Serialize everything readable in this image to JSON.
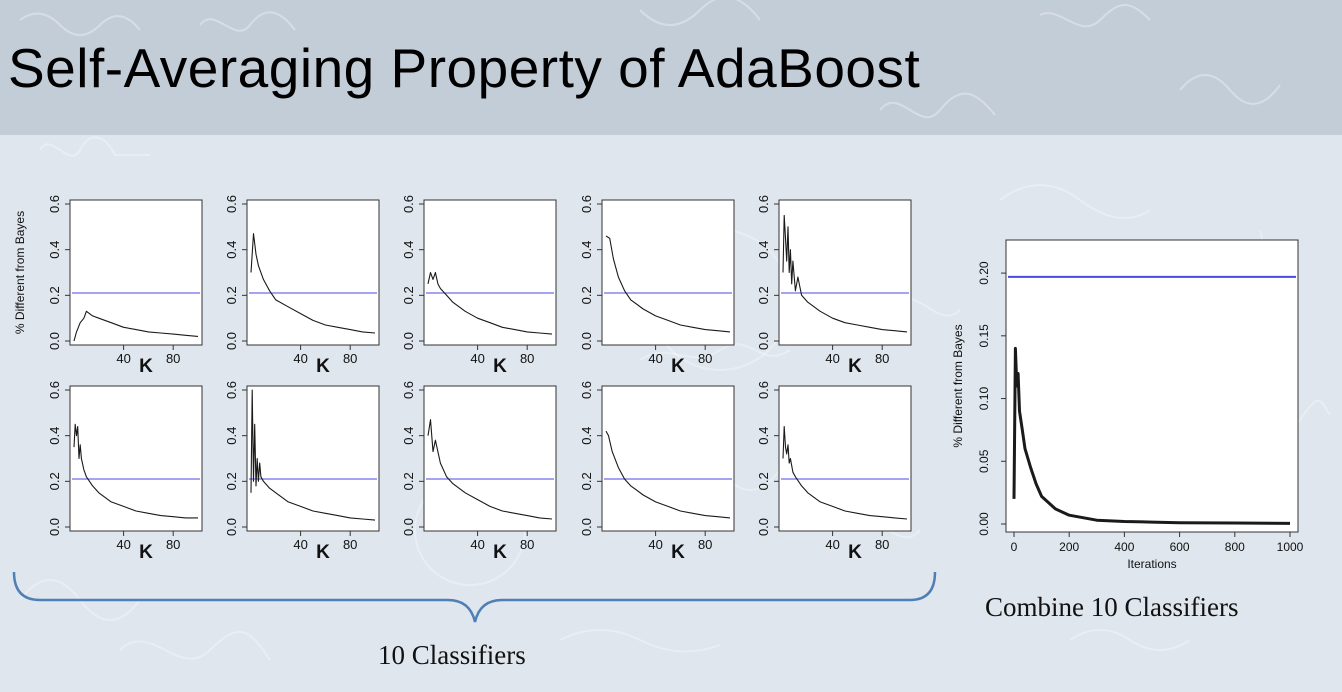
{
  "slide": {
    "title": "Self-Averaging Property of AdaBoost",
    "caption_small": "10 Classifiers",
    "caption_combined": "Combine 10 Classifiers"
  },
  "colors": {
    "curve": "#1a1a1a",
    "bayes_line": "#4a4ae0",
    "header_band": "#c3cdd8",
    "background": "#dfe6ee"
  },
  "chart_data": [
    {
      "type": "line",
      "panel": "small-1",
      "xlabel": "K",
      "ylabel": "% Different from Bayes",
      "xlim": [
        0,
        100
      ],
      "ylim": [
        0,
        0.6
      ],
      "xticks": [
        40,
        80
      ],
      "yticks": [
        0.0,
        0.2,
        0.4,
        0.6
      ],
      "hline": 0.21,
      "series": [
        {
          "x": [
            0,
            2,
            5,
            8,
            10,
            15,
            20,
            30,
            40,
            50,
            60,
            70,
            80,
            90,
            100
          ],
          "y": [
            0.0,
            0.04,
            0.08,
            0.1,
            0.13,
            0.11,
            0.1,
            0.08,
            0.06,
            0.05,
            0.04,
            0.035,
            0.03,
            0.025,
            0.02
          ]
        }
      ]
    },
    {
      "type": "line",
      "panel": "small-2",
      "xlabel": "K",
      "ylabel": "% Different from Bayes",
      "xlim": [
        0,
        100
      ],
      "ylim": [
        0,
        0.6
      ],
      "xticks": [
        40,
        80
      ],
      "yticks": [
        0.0,
        0.2,
        0.4,
        0.6
      ],
      "hline": 0.21,
      "series": [
        {
          "x": [
            0,
            2,
            4,
            6,
            10,
            15,
            20,
            30,
            40,
            50,
            60,
            70,
            80,
            90,
            100
          ],
          "y": [
            0.3,
            0.47,
            0.38,
            0.33,
            0.27,
            0.22,
            0.18,
            0.15,
            0.12,
            0.09,
            0.07,
            0.06,
            0.05,
            0.04,
            0.035
          ]
        }
      ]
    },
    {
      "type": "line",
      "panel": "small-3",
      "xlabel": "K",
      "ylabel": "% Different from Bayes",
      "xlim": [
        0,
        100
      ],
      "ylim": [
        0,
        0.6
      ],
      "xticks": [
        40,
        80
      ],
      "yticks": [
        0.0,
        0.2,
        0.4,
        0.6
      ],
      "hline": 0.21,
      "series": [
        {
          "x": [
            0,
            2,
            4,
            6,
            8,
            10,
            15,
            20,
            30,
            40,
            50,
            60,
            70,
            80,
            90,
            100
          ],
          "y": [
            0.25,
            0.3,
            0.27,
            0.3,
            0.25,
            0.23,
            0.2,
            0.17,
            0.13,
            0.1,
            0.08,
            0.06,
            0.05,
            0.04,
            0.035,
            0.03
          ]
        }
      ]
    },
    {
      "type": "line",
      "panel": "small-4",
      "xlabel": "K",
      "ylabel": "% Different from Bayes",
      "xlim": [
        0,
        100
      ],
      "ylim": [
        0,
        0.6
      ],
      "xticks": [
        40,
        80
      ],
      "yticks": [
        0.0,
        0.2,
        0.4,
        0.6
      ],
      "hline": 0.21,
      "series": [
        {
          "x": [
            0,
            3,
            6,
            10,
            15,
            20,
            30,
            40,
            50,
            60,
            70,
            80,
            90,
            100
          ],
          "y": [
            0.46,
            0.45,
            0.36,
            0.28,
            0.22,
            0.18,
            0.14,
            0.11,
            0.09,
            0.07,
            0.06,
            0.05,
            0.045,
            0.04
          ]
        }
      ]
    },
    {
      "type": "line",
      "panel": "small-5",
      "xlabel": "K",
      "ylabel": "% Different from Bayes",
      "xlim": [
        0,
        100
      ],
      "ylim": [
        0,
        0.6
      ],
      "xticks": [
        40,
        80
      ],
      "yticks": [
        0.0,
        0.2,
        0.4,
        0.6
      ],
      "hline": 0.21,
      "series": [
        {
          "x": [
            0,
            1,
            2,
            3,
            4,
            5,
            6,
            7,
            8,
            10,
            12,
            15,
            20,
            30,
            40,
            50,
            60,
            70,
            80,
            90,
            100
          ],
          "y": [
            0.3,
            0.55,
            0.45,
            0.35,
            0.5,
            0.3,
            0.4,
            0.25,
            0.35,
            0.22,
            0.28,
            0.2,
            0.17,
            0.13,
            0.1,
            0.08,
            0.07,
            0.06,
            0.05,
            0.045,
            0.04
          ]
        }
      ]
    },
    {
      "type": "line",
      "panel": "small-6",
      "xlabel": "K",
      "ylabel": "% Different from Bayes",
      "xlim": [
        0,
        100
      ],
      "ylim": [
        0,
        0.6
      ],
      "xticks": [
        40,
        80
      ],
      "yticks": [
        0.0,
        0.2,
        0.4,
        0.6
      ],
      "hline": 0.21,
      "series": [
        {
          "x": [
            0,
            1,
            2,
            3,
            4,
            5,
            6,
            8,
            10,
            15,
            20,
            30,
            40,
            50,
            60,
            70,
            80,
            90,
            100
          ],
          "y": [
            0.35,
            0.45,
            0.4,
            0.44,
            0.3,
            0.36,
            0.3,
            0.25,
            0.22,
            0.18,
            0.15,
            0.11,
            0.09,
            0.07,
            0.06,
            0.05,
            0.045,
            0.04,
            0.04
          ]
        }
      ]
    },
    {
      "type": "line",
      "panel": "small-7",
      "xlabel": "K",
      "ylabel": "% Different from Bayes",
      "xlim": [
        0,
        100
      ],
      "ylim": [
        0,
        0.6
      ],
      "xticks": [
        40,
        80
      ],
      "yticks": [
        0.0,
        0.2,
        0.4,
        0.6
      ],
      "hline": 0.21,
      "series": [
        {
          "x": [
            0,
            1,
            2,
            3,
            4,
            5,
            6,
            7,
            8,
            10,
            15,
            20,
            30,
            40,
            50,
            60,
            70,
            80,
            90,
            100
          ],
          "y": [
            0.15,
            0.6,
            0.2,
            0.45,
            0.18,
            0.3,
            0.2,
            0.28,
            0.22,
            0.2,
            0.17,
            0.15,
            0.11,
            0.09,
            0.07,
            0.06,
            0.05,
            0.04,
            0.035,
            0.03
          ]
        }
      ]
    },
    {
      "type": "line",
      "panel": "small-8",
      "xlabel": "K",
      "ylabel": "% Different from Bayes",
      "xlim": [
        0,
        100
      ],
      "ylim": [
        0,
        0.6
      ],
      "xticks": [
        40,
        80
      ],
      "yticks": [
        0.0,
        0.2,
        0.4,
        0.6
      ],
      "hline": 0.21,
      "series": [
        {
          "x": [
            0,
            2,
            4,
            6,
            10,
            15,
            20,
            30,
            40,
            50,
            60,
            70,
            80,
            90,
            100
          ],
          "y": [
            0.4,
            0.47,
            0.33,
            0.38,
            0.28,
            0.22,
            0.19,
            0.15,
            0.12,
            0.09,
            0.07,
            0.06,
            0.05,
            0.04,
            0.035
          ]
        }
      ]
    },
    {
      "type": "line",
      "panel": "small-9",
      "xlabel": "K",
      "ylabel": "% Different from Bayes",
      "xlim": [
        0,
        100
      ],
      "ylim": [
        0,
        0.6
      ],
      "xticks": [
        40,
        80
      ],
      "yticks": [
        0.0,
        0.2,
        0.4,
        0.6
      ],
      "hline": 0.21,
      "series": [
        {
          "x": [
            0,
            2,
            5,
            10,
            15,
            20,
            30,
            40,
            50,
            60,
            70,
            80,
            90,
            100
          ],
          "y": [
            0.42,
            0.4,
            0.33,
            0.26,
            0.21,
            0.18,
            0.14,
            0.11,
            0.09,
            0.07,
            0.06,
            0.05,
            0.045,
            0.04
          ]
        }
      ]
    },
    {
      "type": "line",
      "panel": "small-10",
      "xlabel": "K",
      "ylabel": "% Different from Bayes",
      "xlim": [
        0,
        100
      ],
      "ylim": [
        0,
        0.6
      ],
      "xticks": [
        40,
        80
      ],
      "yticks": [
        0.0,
        0.2,
        0.4,
        0.6
      ],
      "hline": 0.21,
      "series": [
        {
          "x": [
            0,
            1,
            2,
            3,
            4,
            5,
            6,
            8,
            10,
            15,
            20,
            30,
            40,
            50,
            60,
            70,
            80,
            90,
            100
          ],
          "y": [
            0.3,
            0.44,
            0.35,
            0.32,
            0.36,
            0.28,
            0.3,
            0.24,
            0.22,
            0.18,
            0.15,
            0.11,
            0.09,
            0.07,
            0.06,
            0.05,
            0.045,
            0.04,
            0.035
          ]
        }
      ]
    },
    {
      "type": "line",
      "panel": "combined",
      "xlabel": "Iterations",
      "ylabel": "% Different from Bayes",
      "xlim": [
        0,
        1000
      ],
      "ylim": [
        0,
        0.22
      ],
      "xticks": [
        0,
        200,
        400,
        600,
        800,
        1000
      ],
      "yticks": [
        0.0,
        0.05,
        0.1,
        0.15,
        0.2
      ],
      "hline": 0.197,
      "series": [
        {
          "x": [
            0,
            5,
            10,
            15,
            20,
            30,
            40,
            60,
            80,
            100,
            150,
            200,
            300,
            400,
            500,
            600,
            800,
            1000
          ],
          "y": [
            0.02,
            0.14,
            0.11,
            0.12,
            0.09,
            0.075,
            0.06,
            0.045,
            0.032,
            0.022,
            0.012,
            0.007,
            0.003,
            0.002,
            0.0015,
            0.001,
            0.0008,
            0.0005
          ]
        }
      ]
    }
  ]
}
